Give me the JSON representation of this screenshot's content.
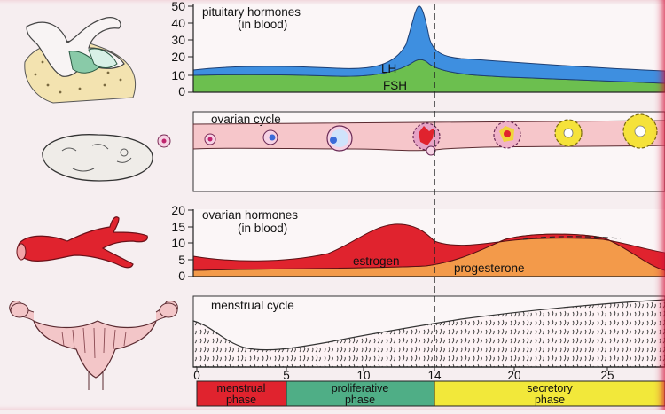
{
  "panels": {
    "pituitary": {
      "title_line1": "pituitary hormones",
      "title_line2": "(in blood)",
      "y_ticks": [
        "50",
        "40",
        "30",
        "20",
        "10",
        "0"
      ],
      "lh_label": "LH",
      "fsh_label": "FSH"
    },
    "ovarian_cycle": {
      "title": "ovarian cycle"
    },
    "ovarian_hormones": {
      "title_line1": "ovarian hormones",
      "title_line2": "(in blood)",
      "y_ticks": [
        "20",
        "15",
        "10",
        "5",
        "0"
      ],
      "estrogen_label": "estrogen",
      "progesterone_label": "progesterone"
    },
    "menstrual_cycle": {
      "title": "menstrual cycle"
    }
  },
  "x_axis": {
    "ticks": [
      "0",
      "5",
      "10",
      "14",
      "20",
      "25"
    ]
  },
  "phases": {
    "menstrual_line1": "menstrual",
    "menstrual_line2": "phase",
    "proliferative_line1": "proliferative",
    "proliferative_line2": "phase",
    "secretory_line1": "secretory",
    "secretory_line2": "phase"
  },
  "colors": {
    "lh": "#3e8fe0",
    "fsh": "#6cbf4f",
    "estrogen": "#e0232e",
    "progesterone": "#f39a4a",
    "ovarian_band": "#f6c6ca",
    "menstrual_phase": "#e0232e",
    "proliferative_phase": "#4fae86",
    "secretory_phase": "#f2e83a"
  }
}
